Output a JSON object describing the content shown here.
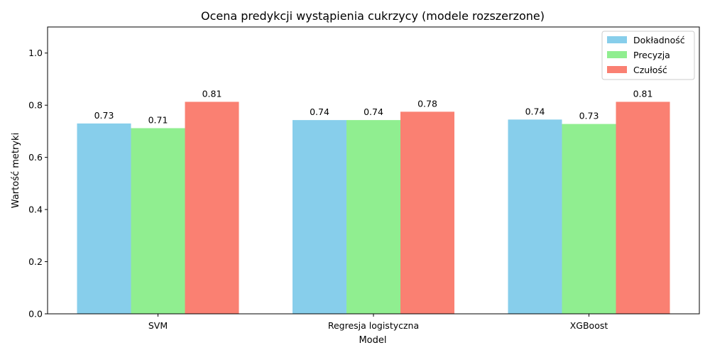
{
  "chart_data": {
    "type": "bar",
    "title": "Ocena predykcji wystąpienia cukrzycy (modele rozszerzone)",
    "xlabel": "Model",
    "ylabel": "Wartość metryki",
    "categories": [
      "SVM",
      "Regresja logistyczna",
      "XGBoost"
    ],
    "series": [
      {
        "name": "Dokładność",
        "color": "#87ceeb",
        "values": [
          0.73,
          0.743,
          0.745
        ],
        "labels": [
          "0.73",
          "0.74",
          "0.74"
        ]
      },
      {
        "name": "Precyzja",
        "color": "#90ee90",
        "values": [
          0.712,
          0.743,
          0.728
        ],
        "labels": [
          "0.71",
          "0.74",
          "0.73"
        ]
      },
      {
        "name": "Czułość",
        "color": "#fa8072",
        "values": [
          0.813,
          0.775,
          0.813
        ],
        "labels": [
          "0.81",
          "0.78",
          "0.81"
        ]
      }
    ],
    "ylim": [
      0,
      1.1
    ],
    "yticks": [
      0.0,
      0.2,
      0.4,
      0.6,
      0.8,
      1.0
    ],
    "ytick_labels": [
      "0.0",
      "0.2",
      "0.4",
      "0.6",
      "0.8",
      "1.0"
    ],
    "grid": false,
    "legend_position": "top-right"
  }
}
